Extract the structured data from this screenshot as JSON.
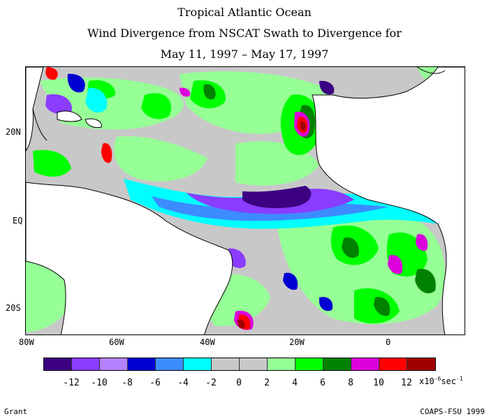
{
  "title": {
    "line1": "Tropical Atlantic Ocean",
    "line2": "Wind Divergence from NSCAT Swath to Divergence for",
    "line3": "May 11, 1997 – May 17, 1997"
  },
  "map": {
    "lat_labels": [
      "20N",
      "EQ",
      "20S"
    ],
    "lon_labels": [
      "80W",
      "60W",
      "40W",
      "20W",
      "0"
    ],
    "land_color": "#ffffff",
    "ocean_background": "#cccccc"
  },
  "colorbar": {
    "colors": [
      "#3c0082",
      "#8a3cff",
      "#b482ff",
      "#0000d2",
      "#3c8cff",
      "#00ffff",
      "#c8c8c8",
      "#c8c8c8",
      "#96ff96",
      "#00ff00",
      "#008200",
      "#dc00dc",
      "#ff0000",
      "#a00000"
    ],
    "tick_labels": [
      "-12",
      "-10",
      "-8",
      "-6",
      "-4",
      "-2",
      "0",
      "2",
      "4",
      "6",
      "8",
      "10",
      "12"
    ],
    "units_prefix": "x10",
    "units_exp1": "-6",
    "units_mid": "sec",
    "units_exp2": "-1"
  },
  "footer": {
    "left": "Grant",
    "right": "COAPS-FSU 1999"
  }
}
